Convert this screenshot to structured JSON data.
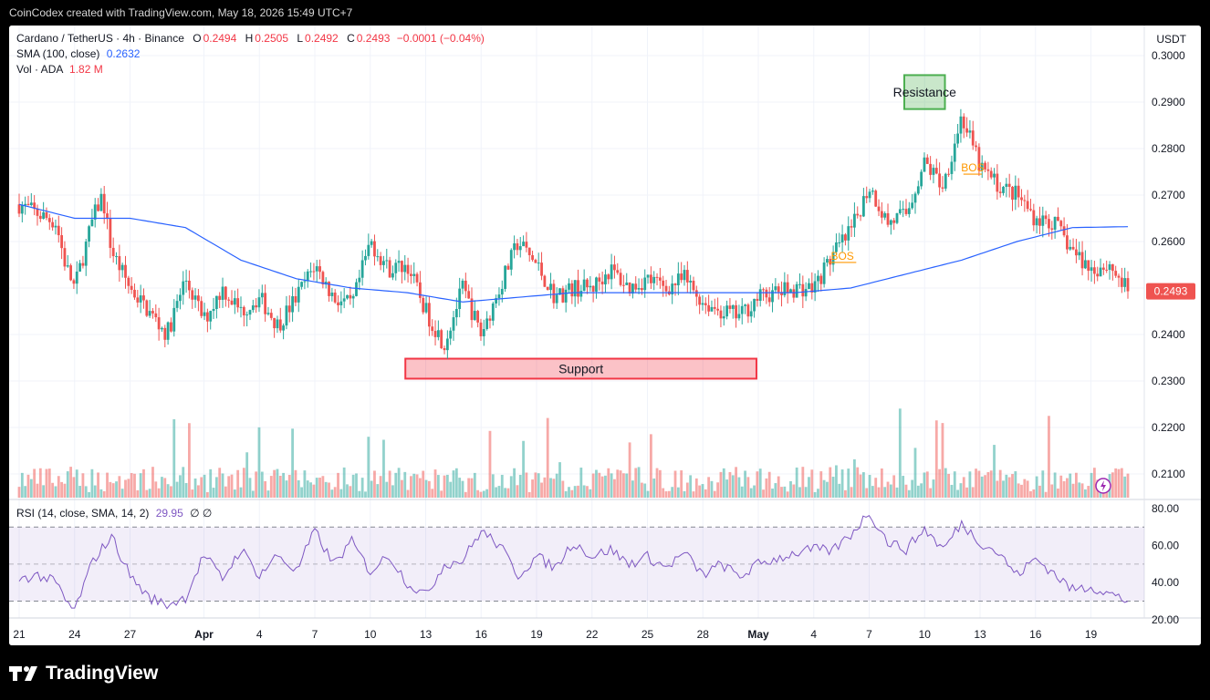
{
  "header": {
    "attribution": "CoinCodex created with TradingView.com, May 18, 2026 15:49 UTC+7"
  },
  "legend": {
    "symbol": "Cardano / TetherUS · 4h · Binance",
    "open_label": "O",
    "open": "0.2494",
    "high_label": "H",
    "high": "0.2505",
    "low_label": "L",
    "low": "0.2492",
    "close_label": "C",
    "close": "0.2493",
    "change": "−0.0001 (−0.04%)",
    "sma_label": "SMA (100, close)",
    "sma_value": "0.2632",
    "vol_label": "Vol · ADA",
    "vol_value": "1.82 M",
    "rsi_label": "RSI (14, close, SMA, 14, 2)",
    "rsi_value": "29.95",
    "rsi_extra": "∅  ∅"
  },
  "currency": "USDT",
  "last_price_label": "0.2493",
  "zones": {
    "resistance": "Resistance",
    "support": "Support",
    "bos": "BOS"
  },
  "footer": {
    "brand": "TradingView"
  },
  "colors": {
    "up": "#26a69a",
    "down": "#ef5350",
    "sma": "#2962ff",
    "rsi": "#7e57c2",
    "resistance": "#4caf50",
    "support": "#f23645",
    "bos": "#ff9800"
  },
  "chart_data": [
    {
      "type": "candlestick",
      "title": "Cardano / TetherUS · 4h · Binance",
      "ylim": [
        0.2055,
        0.3005
      ],
      "y_ticks": [
        "0.3000",
        "0.2900",
        "0.2800",
        "0.2700",
        "0.2600",
        "0.2500",
        "0.2400",
        "0.2300",
        "0.2200",
        "0.2100"
      ],
      "x_ticks": [
        "21",
        "24",
        "27",
        "Apr",
        "4",
        "7",
        "10",
        "13",
        "16",
        "19",
        "22",
        "25",
        "28",
        "May",
        "4",
        "7",
        "10",
        "13",
        "16",
        "19"
      ],
      "x_tick_day_index": [
        0,
        3,
        6,
        10,
        13,
        16,
        19,
        22,
        25,
        28,
        31,
        34,
        37,
        40,
        43,
        46,
        49,
        52,
        55,
        58
      ],
      "price_path": [
        [
          0,
          0.268
        ],
        [
          1,
          0.266
        ],
        [
          2,
          0.264
        ],
        [
          2.5,
          0.255
        ],
        [
          3,
          0.25
        ],
        [
          4,
          0.265
        ],
        [
          4.5,
          0.27
        ],
        [
          5,
          0.258
        ],
        [
          6,
          0.25
        ],
        [
          7,
          0.245
        ],
        [
          8,
          0.24
        ],
        [
          9,
          0.252
        ],
        [
          10,
          0.243
        ],
        [
          11,
          0.25
        ],
        [
          12,
          0.245
        ],
        [
          13,
          0.248
        ],
        [
          14,
          0.242
        ],
        [
          15,
          0.248
        ],
        [
          16,
          0.255
        ],
        [
          17,
          0.248
        ],
        [
          18,
          0.246
        ],
        [
          19,
          0.26
        ],
        [
          20,
          0.254
        ],
        [
          21,
          0.255
        ],
        [
          22,
          0.245
        ],
        [
          23,
          0.238
        ],
        [
          24,
          0.25
        ],
        [
          25,
          0.24
        ],
        [
          26,
          0.25
        ],
        [
          27,
          0.26
        ],
        [
          28,
          0.255
        ],
        [
          29,
          0.248
        ],
        [
          30,
          0.25
        ],
        [
          31,
          0.25
        ],
        [
          32,
          0.254
        ],
        [
          33,
          0.25
        ],
        [
          34,
          0.252
        ],
        [
          35,
          0.25
        ],
        [
          36,
          0.252
        ],
        [
          37,
          0.247
        ],
        [
          38,
          0.245
        ],
        [
          39,
          0.244
        ],
        [
          40,
          0.248
        ],
        [
          41,
          0.249
        ],
        [
          42,
          0.25
        ],
        [
          43,
          0.25
        ],
        [
          44,
          0.257
        ],
        [
          45,
          0.262
        ],
        [
          46,
          0.272
        ],
        [
          47,
          0.264
        ],
        [
          48,
          0.266
        ],
        [
          49,
          0.277
        ],
        [
          50,
          0.272
        ],
        [
          51,
          0.287
        ],
        [
          52,
          0.276
        ],
        [
          53,
          0.272
        ],
        [
          54,
          0.27
        ],
        [
          55,
          0.265
        ],
        [
          56,
          0.264
        ],
        [
          57,
          0.258
        ],
        [
          58,
          0.254
        ],
        [
          59,
          0.255
        ],
        [
          60,
          0.2493
        ]
      ],
      "sma_path": [
        [
          0,
          0.268
        ],
        [
          3,
          0.265
        ],
        [
          6,
          0.265
        ],
        [
          9,
          0.263
        ],
        [
          12,
          0.256
        ],
        [
          15,
          0.252
        ],
        [
          18,
          0.25
        ],
        [
          21,
          0.249
        ],
        [
          24,
          0.247
        ],
        [
          27,
          0.248
        ],
        [
          30,
          0.249
        ],
        [
          33,
          0.249
        ],
        [
          36,
          0.249
        ],
        [
          39,
          0.249
        ],
        [
          42,
          0.249
        ],
        [
          45,
          0.25
        ],
        [
          48,
          0.253
        ],
        [
          51,
          0.256
        ],
        [
          54,
          0.26
        ],
        [
          57,
          0.263
        ],
        [
          60,
          0.2632
        ]
      ],
      "last_price": 0.2493,
      "sma_last": 0.2632,
      "zones": [
        {
          "label": "Resistance",
          "x_day": [
            47.9,
            50.1
          ],
          "y": [
            0.2885,
            0.2958
          ]
        },
        {
          "label": "Support",
          "x_day": [
            20.9,
            39.9
          ],
          "y": [
            0.2305,
            0.2348
          ]
        }
      ],
      "bos_markers": [
        {
          "x_day": [
            43.8,
            45.3
          ],
          "y": 0.2555
        },
        {
          "x_day": [
            51.1,
            52.1
          ],
          "y": 0.2745
        }
      ],
      "volume_note": "Vol · ADA 1.82 M"
    },
    {
      "type": "line",
      "title": "RSI (14, close, SMA, 14, 2)",
      "ylim": [
        20,
        80
      ],
      "y_ticks": [
        "80.00",
        "60.00",
        "40.00",
        "20.00"
      ],
      "bands": [
        70,
        50,
        30
      ],
      "rsi_path": [
        [
          0,
          42
        ],
        [
          1,
          44
        ],
        [
          2,
          40
        ],
        [
          2.5,
          30
        ],
        [
          3,
          25
        ],
        [
          4,
          52
        ],
        [
          5,
          65
        ],
        [
          6,
          44
        ],
        [
          7,
          32
        ],
        [
          8,
          28
        ],
        [
          9,
          32
        ],
        [
          10,
          55
        ],
        [
          11,
          42
        ],
        [
          12,
          58
        ],
        [
          13,
          44
        ],
        [
          14,
          55
        ],
        [
          15,
          46
        ],
        [
          16,
          68
        ],
        [
          17,
          50
        ],
        [
          18,
          62
        ],
        [
          19,
          46
        ],
        [
          20,
          55
        ],
        [
          21,
          40
        ],
        [
          22,
          33
        ],
        [
          23,
          50
        ],
        [
          24,
          52
        ],
        [
          25,
          68
        ],
        [
          26,
          60
        ],
        [
          27,
          44
        ],
        [
          28,
          54
        ],
        [
          29,
          48
        ],
        [
          30,
          62
        ],
        [
          31,
          54
        ],
        [
          32,
          58
        ],
        [
          33,
          50
        ],
        [
          34,
          54
        ],
        [
          35,
          48
        ],
        [
          36,
          56
        ],
        [
          37,
          44
        ],
        [
          38,
          50
        ],
        [
          39,
          43
        ],
        [
          40,
          50
        ],
        [
          41,
          53
        ],
        [
          42,
          56
        ],
        [
          43,
          58
        ],
        [
          44,
          57
        ],
        [
          45,
          66
        ],
        [
          46,
          78
        ],
        [
          47,
          62
        ],
        [
          48,
          58
        ],
        [
          49,
          69
        ],
        [
          50,
          58
        ],
        [
          51,
          72
        ],
        [
          52,
          62
        ],
        [
          53,
          56
        ],
        [
          54,
          44
        ],
        [
          55,
          53
        ],
        [
          56,
          45
        ],
        [
          57,
          36
        ],
        [
          58,
          38
        ],
        [
          59,
          34
        ],
        [
          60,
          29.95
        ]
      ],
      "last": 29.95
    }
  ]
}
